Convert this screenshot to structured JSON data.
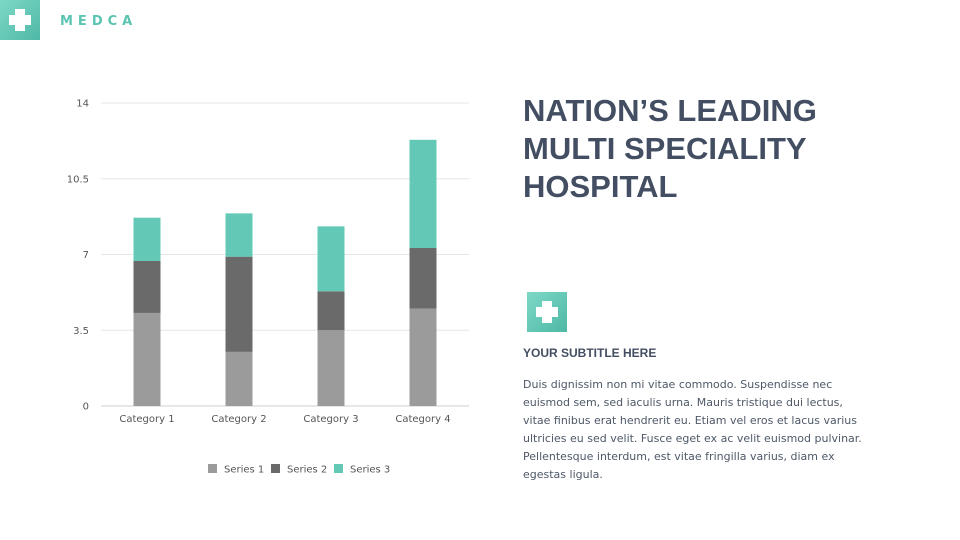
{
  "brand": {
    "name": "MEDCA"
  },
  "icons": {
    "logo": "medical-cross-icon",
    "badge": "medical-cross-icon"
  },
  "colors": {
    "accent": "#63c8b6",
    "heading": "#434e62",
    "series1": "#9b9b9b",
    "series2": "#6a6a6a",
    "series3": "#63c8b6"
  },
  "heading": {
    "lines": [
      "NATION’S LEADING",
      "MULTI SPECIALITY",
      "HOSPITAL"
    ]
  },
  "subtitle": "YOUR SUBTITLE HERE",
  "body": "Duis dignissim non mi vitae commodo. Suspendisse nec euismod sem, sed iaculis urna. Mauris tristique dui lectus, vitae finibus erat hendrerit eu. Etiam vel eros et lacus varius ultricies eu sed velit. Fusce eget ex ac velit euismod pulvinar. Pellentesque interdum, est vitae fringilla varius, diam ex egestas ligula.",
  "chart_data": {
    "type": "bar",
    "stacked": true,
    "categories": [
      "Category 1",
      "Category 2",
      "Category 3",
      "Category 4"
    ],
    "series": [
      {
        "name": "Series 1",
        "values": [
          4.3,
          2.5,
          3.5,
          4.5
        ],
        "color": "#9b9b9b"
      },
      {
        "name": "Series 2",
        "values": [
          2.4,
          4.4,
          1.8,
          2.8
        ],
        "color": "#6a6a6a"
      },
      {
        "name": "Series 3",
        "values": [
          2.0,
          2.0,
          3.0,
          5.0
        ],
        "color": "#63c8b6"
      }
    ],
    "yticks": [
      "0",
      "3.5",
      "7",
      "10.5",
      "14"
    ],
    "ylim": [
      0,
      14
    ],
    "grid": true,
    "legend_position": "bottom",
    "title": "",
    "xlabel": "",
    "ylabel": ""
  }
}
